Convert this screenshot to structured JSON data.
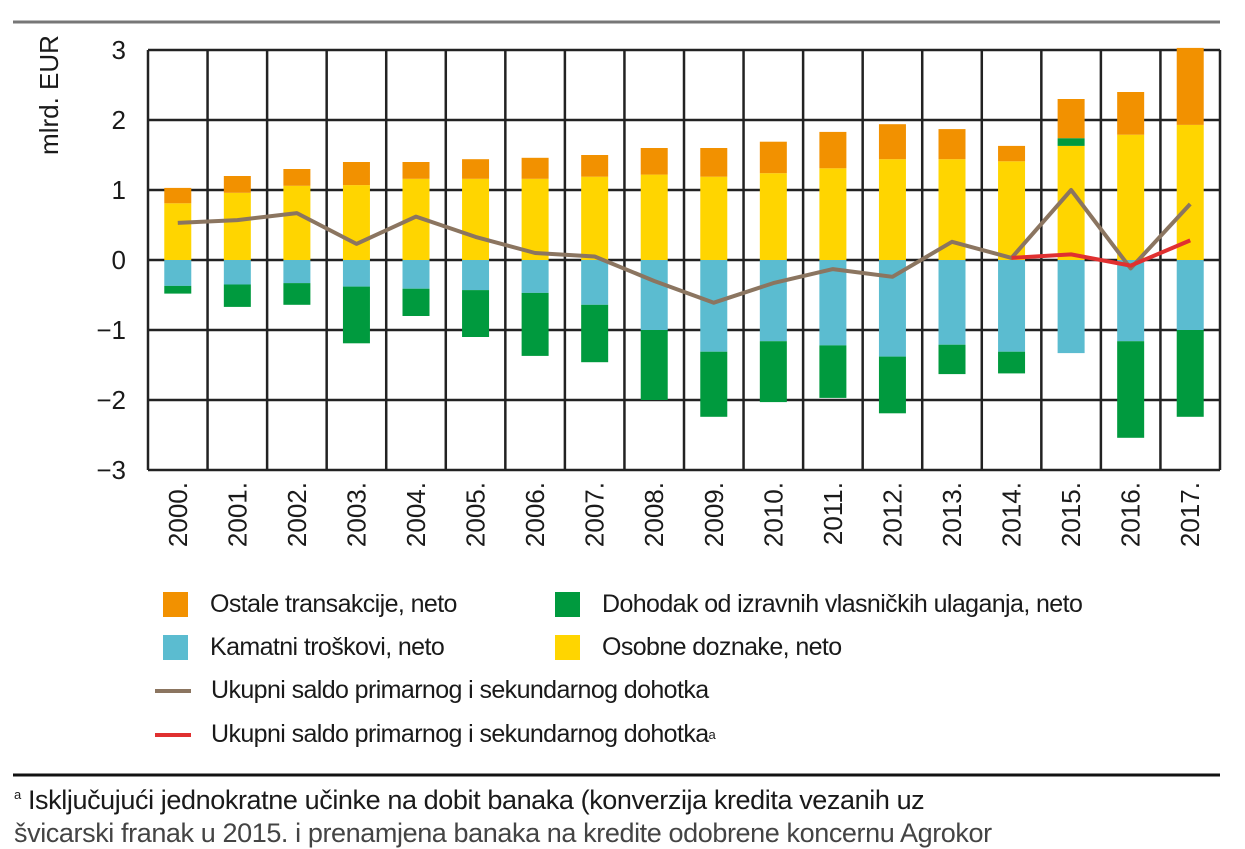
{
  "chart_data": {
    "type": "bar",
    "stacked": true,
    "ylabel": "mlrd. EUR",
    "ylim": [
      -3,
      3
    ],
    "yticks": [
      "3",
      "2",
      "1",
      "0",
      "−1",
      "−2",
      "−3"
    ],
    "grid": true,
    "legend_position": "bottom",
    "categories": [
      "2000.",
      "2001.",
      "2002.",
      "2003.",
      "2004.",
      "2005.",
      "2006.",
      "2007.",
      "2008.",
      "2009.",
      "2010.",
      "2011.",
      "2012.",
      "2013.",
      "2014.",
      "2015.",
      "2016.",
      "2017."
    ],
    "series": [
      {
        "name": "Osobne doznake, neto",
        "color": "#ffd500",
        "values": [
          0.81,
          0.96,
          1.06,
          1.07,
          1.16,
          1.16,
          1.16,
          1.19,
          1.22,
          1.19,
          1.24,
          1.31,
          1.44,
          1.44,
          1.41,
          1.63,
          1.79,
          1.93
        ]
      },
      {
        "name": "Dohodak od izravnih vlasničkih ulaganja, neto (pozitivno)",
        "color": "#009a3e",
        "values": [
          0,
          0,
          0,
          0,
          0,
          0,
          0,
          0,
          0,
          0,
          0,
          0,
          0,
          0,
          0,
          0.11,
          0,
          0
        ]
      },
      {
        "name": "Ostale transakcije, neto",
        "color": "#f29100",
        "values": [
          0.22,
          0.24,
          0.24,
          0.33,
          0.24,
          0.28,
          0.3,
          0.31,
          0.38,
          0.41,
          0.45,
          0.52,
          0.5,
          0.43,
          0.22,
          0.56,
          0.61,
          1.1
        ]
      },
      {
        "name": "Kamatni troškovi, neto",
        "color": "#5bbcd0",
        "values": [
          -0.37,
          -0.35,
          -0.33,
          -0.38,
          -0.41,
          -0.43,
          -0.47,
          -0.64,
          -1.0,
          -1.31,
          -1.16,
          -1.22,
          -1.38,
          -1.21,
          -1.31,
          -1.33,
          -1.16,
          -1.0
        ]
      },
      {
        "name": "Dohodak od izravnih vlasničkih ulaganja, neto",
        "color": "#009a3e",
        "values": [
          -0.11,
          -0.32,
          -0.31,
          -0.81,
          -0.39,
          -0.67,
          -0.9,
          -0.82,
          -1.0,
          -0.93,
          -0.87,
          -0.75,
          -0.81,
          -0.42,
          -0.31,
          0,
          -1.38,
          -1.24
        ]
      }
    ],
    "lines": [
      {
        "name": "Ukupni saldo primarnog i sekundarnog dohotka",
        "color": "#8b7560",
        "values": [
          0.53,
          0.57,
          0.67,
          0.23,
          0.62,
          0.33,
          0.1,
          0.05,
          -0.3,
          -0.61,
          -0.33,
          -0.13,
          -0.24,
          0.26,
          0.03,
          1.0,
          -0.12,
          0.8
        ]
      },
      {
        "name": "Ukupni saldo primarnog i sekundarnog dohotka",
        "name_sup": "a",
        "color": "#e03030",
        "values": [
          null,
          null,
          null,
          null,
          null,
          null,
          null,
          null,
          null,
          null,
          null,
          null,
          null,
          null,
          0.03,
          0.08,
          -0.08,
          0.28
        ]
      }
    ]
  },
  "legend": {
    "ostale": "Ostale transakcije, neto",
    "dohodak": "Dohodak od izravnih vlasničkih ulaganja, neto",
    "kamatni": "Kamatni troškovi, neto",
    "doznake": "Osobne doznake, neto",
    "ukupni": "Ukupni saldo primarnog i sekundarnog dohotka",
    "ukupni_a": "Ukupni saldo primarnog i sekundarnog dohotka",
    "sup": "a"
  },
  "footnote": {
    "marker": "a",
    "line1": "Isključujući jednokratne učinke na dobit banaka (konverzija kredita vezanih uz",
    "line2": "švicarski franak u 2015. i prenamjena banaka na kredite odobrene koncernu Agrokor"
  }
}
